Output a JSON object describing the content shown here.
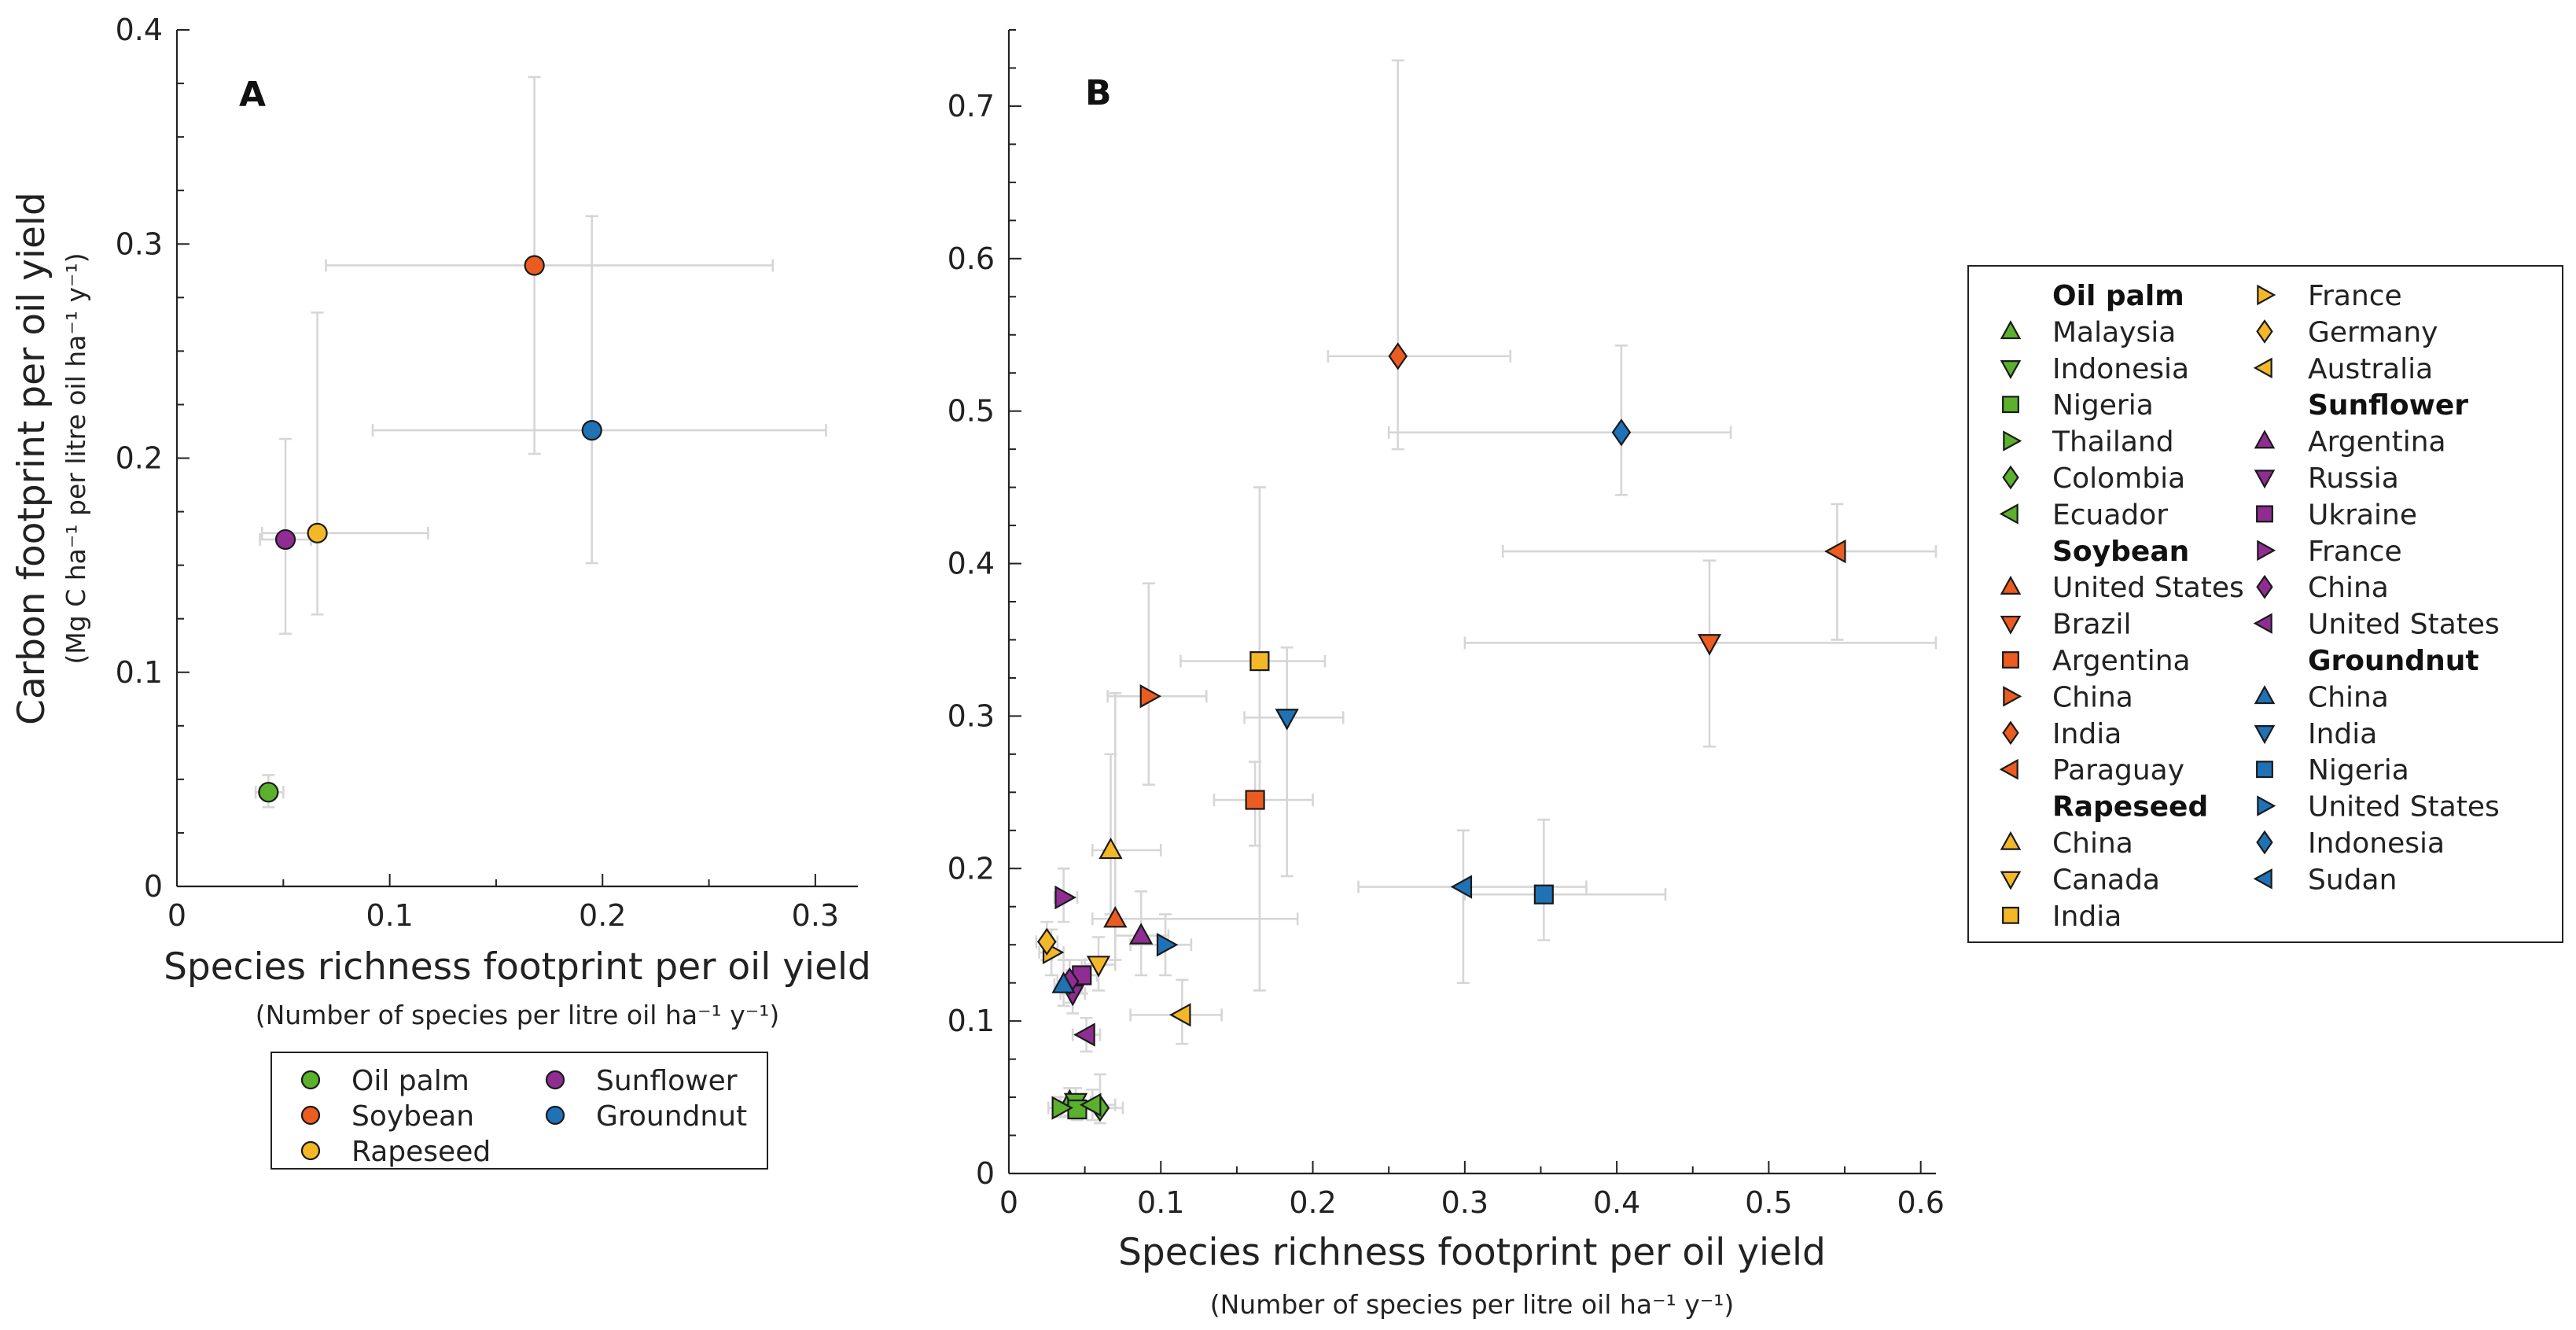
{
  "colors": {
    "Oil palm": "#5bb02e",
    "Soybean": "#ec5b1f",
    "Rapeseed": "#f4b728",
    "Sunflower": "#8f2d93",
    "Groundnut": "#1f72b6",
    "error_bar": "#d6d6d6",
    "axis": "#222222"
  },
  "chart_data": [
    {
      "type": "scatter",
      "panel": "A",
      "xlabel": "Species richness footprint per oil yield",
      "xlabel_sub": "(Number of species per litre oil ha⁻¹ y⁻¹)",
      "ylabel": "Carbon footprint per oil yield",
      "ylabel_sub": "(Mg C ha⁻¹ per litre oil ha⁻¹ y⁻¹)",
      "xlim": [
        0,
        0.32
      ],
      "ylim": [
        0,
        0.4
      ],
      "xticks": [
        0,
        0.1,
        0.2,
        0.3
      ],
      "yticks": [
        0,
        0.1,
        0.2,
        0.3,
        0.4
      ],
      "xtick_labels": [
        "0",
        "0.1",
        "0.2",
        "0.3"
      ],
      "ytick_labels": [
        "0",
        "0.1",
        "0.2",
        "0.3",
        "0.4"
      ],
      "grid": false,
      "legend_placement": "below",
      "series": [
        {
          "name": "Oil palm",
          "marker": "circle",
          "x": 0.043,
          "y": 0.044,
          "x_err": [
            0.037,
            0.05
          ],
          "y_err": [
            0.037,
            0.052
          ]
        },
        {
          "name": "Soybean",
          "marker": "circle",
          "x": 0.168,
          "y": 0.29,
          "x_err": [
            0.07,
            0.28
          ],
          "y_err": [
            0.202,
            0.378
          ]
        },
        {
          "name": "Rapeseed",
          "marker": "circle",
          "x": 0.066,
          "y": 0.165,
          "x_err": [
            0.04,
            0.118
          ],
          "y_err": [
            0.127,
            0.268
          ]
        },
        {
          "name": "Sunflower",
          "marker": "circle",
          "x": 0.051,
          "y": 0.162,
          "x_err": [
            0.039,
            0.063
          ],
          "y_err": [
            0.118,
            0.209
          ]
        },
        {
          "name": "Groundnut",
          "marker": "circle",
          "x": 0.195,
          "y": 0.213,
          "x_err": [
            0.092,
            0.305
          ],
          "y_err": [
            0.151,
            0.313
          ]
        }
      ]
    },
    {
      "type": "scatter",
      "panel": "B",
      "xlabel": "Species richness footprint per oil yield",
      "xlabel_sub": "(Number of species per litre oil ha⁻¹ y⁻¹)",
      "xlim": [
        0,
        0.61
      ],
      "ylim": [
        0,
        0.75
      ],
      "xticks": [
        0,
        0.1,
        0.2,
        0.3,
        0.4,
        0.5,
        0.6
      ],
      "yticks": [
        0,
        0.1,
        0.2,
        0.3,
        0.4,
        0.5,
        0.6,
        0.7
      ],
      "xtick_labels": [
        "0",
        "0.1",
        "0.2",
        "0.3",
        "0.4",
        "0.5",
        "0.6"
      ],
      "ytick_labels": [
        "0",
        "0.1",
        "0.2",
        "0.3",
        "0.4",
        "0.5",
        "0.6",
        "0.7"
      ],
      "grid": false,
      "legend_placement": "right",
      "series": [
        {
          "name": "Oil palm",
          "points": [
            {
              "country": "Malaysia",
              "marker": "tri-up",
              "x": 0.04,
              "y": 0.047,
              "x_err": [
                0.03,
                0.05
              ],
              "y_err": [
                0.038,
                0.056
              ]
            },
            {
              "country": "Indonesia",
              "marker": "tri-down",
              "x": 0.044,
              "y": 0.047,
              "x_err": [
                0.034,
                0.054
              ],
              "y_err": [
                0.04,
                0.056
              ]
            },
            {
              "country": "Nigeria",
              "marker": "square",
              "x": 0.045,
              "y": 0.042,
              "x_err": [
                0.035,
                0.055
              ],
              "y_err": [
                0.035,
                0.05
              ]
            },
            {
              "country": "Thailand",
              "marker": "tri-right",
              "x": 0.034,
              "y": 0.043,
              "x_err": [
                0.026,
                0.042
              ],
              "y_err": [
                0.037,
                0.05
              ]
            },
            {
              "country": "Colombia",
              "marker": "diamond",
              "x": 0.06,
              "y": 0.043,
              "x_err": [
                0.045,
                0.075
              ],
              "y_err": [
                0.033,
                0.065
              ]
            },
            {
              "country": "Ecuador",
              "marker": "tri-left",
              "x": 0.055,
              "y": 0.045,
              "x_err": [
                0.04,
                0.07
              ],
              "y_err": [
                0.035,
                0.055
              ]
            }
          ]
        },
        {
          "name": "Soybean",
          "points": [
            {
              "country": "United States",
              "marker": "tri-up",
              "x": 0.07,
              "y": 0.167,
              "x_err": [
                0.055,
                0.19
              ],
              "y_err": [
                0.14,
                0.315
              ]
            },
            {
              "country": "Brazil",
              "marker": "tri-down",
              "x": 0.461,
              "y": 0.348,
              "x_err": [
                0.3,
                0.61
              ],
              "y_err": [
                0.28,
                0.402
              ]
            },
            {
              "country": "Argentina",
              "marker": "square",
              "x": 0.162,
              "y": 0.245,
              "x_err": [
                0.135,
                0.2
              ],
              "y_err": [
                0.215,
                0.27
              ]
            },
            {
              "country": "China",
              "marker": "tri-right",
              "x": 0.092,
              "y": 0.313,
              "x_err": [
                0.065,
                0.13
              ],
              "y_err": [
                0.255,
                0.387
              ]
            },
            {
              "country": "India",
              "marker": "diamond",
              "x": 0.256,
              "y": 0.536,
              "x_err": [
                0.21,
                0.33
              ],
              "y_err": [
                0.475,
                0.73
              ]
            },
            {
              "country": "Paraguay",
              "marker": "tri-left",
              "x": 0.545,
              "y": 0.408,
              "x_err": [
                0.325,
                0.61
              ],
              "y_err": [
                0.35,
                0.439
              ]
            }
          ]
        },
        {
          "name": "Rapeseed",
          "points": [
            {
              "country": "China",
              "marker": "tri-up",
              "x": 0.067,
              "y": 0.212,
              "x_err": [
                0.055,
                0.1
              ],
              "y_err": [
                0.17,
                0.275
              ]
            },
            {
              "country": "Canada",
              "marker": "tri-down",
              "x": 0.059,
              "y": 0.137,
              "x_err": [
                0.05,
                0.07
              ],
              "y_err": [
                0.12,
                0.155
              ]
            },
            {
              "country": "India",
              "marker": "square",
              "x": 0.165,
              "y": 0.336,
              "x_err": [
                0.113,
                0.208
              ],
              "y_err": [
                0.12,
                0.45
              ]
            },
            {
              "country": "France",
              "marker": "tri-right",
              "x": 0.028,
              "y": 0.145,
              "x_err": [
                0.02,
                0.036
              ],
              "y_err": [
                0.13,
                0.16
              ]
            },
            {
              "country": "Germany",
              "marker": "diamond",
              "x": 0.025,
              "y": 0.152,
              "x_err": [
                0.018,
                0.032
              ],
              "y_err": [
                0.14,
                0.165
              ]
            },
            {
              "country": "Australia",
              "marker": "tri-left",
              "x": 0.114,
              "y": 0.104,
              "x_err": [
                0.08,
                0.14
              ],
              "y_err": [
                0.085,
                0.127
              ]
            }
          ]
        },
        {
          "name": "Sunflower",
          "points": [
            {
              "country": "Argentina",
              "marker": "tri-up",
              "x": 0.087,
              "y": 0.156,
              "x_err": [
                0.07,
                0.105
              ],
              "y_err": [
                0.13,
                0.185
              ]
            },
            {
              "country": "Russia",
              "marker": "tri-down",
              "x": 0.042,
              "y": 0.118,
              "x_err": [
                0.034,
                0.05
              ],
              "y_err": [
                0.105,
                0.13
              ]
            },
            {
              "country": "Ukraine",
              "marker": "square",
              "x": 0.048,
              "y": 0.13,
              "x_err": [
                0.038,
                0.058
              ],
              "y_err": [
                0.118,
                0.14
              ]
            },
            {
              "country": "France",
              "marker": "tri-right",
              "x": 0.036,
              "y": 0.181,
              "x_err": [
                0.03,
                0.045
              ],
              "y_err": [
                0.165,
                0.2
              ]
            },
            {
              "country": "China",
              "marker": "diamond",
              "x": 0.04,
              "y": 0.126,
              "x_err": [
                0.032,
                0.048
              ],
              "y_err": [
                0.112,
                0.14
              ]
            },
            {
              "country": "United States",
              "marker": "tri-left",
              "x": 0.051,
              "y": 0.091,
              "x_err": [
                0.042,
                0.06
              ],
              "y_err": [
                0.08,
                0.102
              ]
            }
          ]
        },
        {
          "name": "Groundnut",
          "points": [
            {
              "country": "China",
              "marker": "tri-up",
              "x": 0.036,
              "y": 0.124,
              "x_err": [
                0.03,
                0.045
              ],
              "y_err": [
                0.11,
                0.14
              ]
            },
            {
              "country": "India",
              "marker": "tri-down",
              "x": 0.183,
              "y": 0.299,
              "x_err": [
                0.155,
                0.22
              ],
              "y_err": [
                0.195,
                0.345
              ]
            },
            {
              "country": "Nigeria",
              "marker": "square",
              "x": 0.352,
              "y": 0.183,
              "x_err": [
                0.3,
                0.432
              ],
              "y_err": [
                0.153,
                0.232
              ]
            },
            {
              "country": "United States",
              "marker": "tri-right",
              "x": 0.103,
              "y": 0.15,
              "x_err": [
                0.08,
                0.12
              ],
              "y_err": [
                0.13,
                0.17
              ]
            },
            {
              "country": "Indonesia",
              "marker": "diamond",
              "x": 0.403,
              "y": 0.486,
              "x_err": [
                0.25,
                0.475
              ],
              "y_err": [
                0.445,
                0.543
              ]
            },
            {
              "country": "Sudan",
              "marker": "tri-left",
              "x": 0.299,
              "y": 0.188,
              "x_err": [
                0.23,
                0.38
              ],
              "y_err": [
                0.125,
                0.225
              ]
            }
          ]
        }
      ]
    }
  ]
}
